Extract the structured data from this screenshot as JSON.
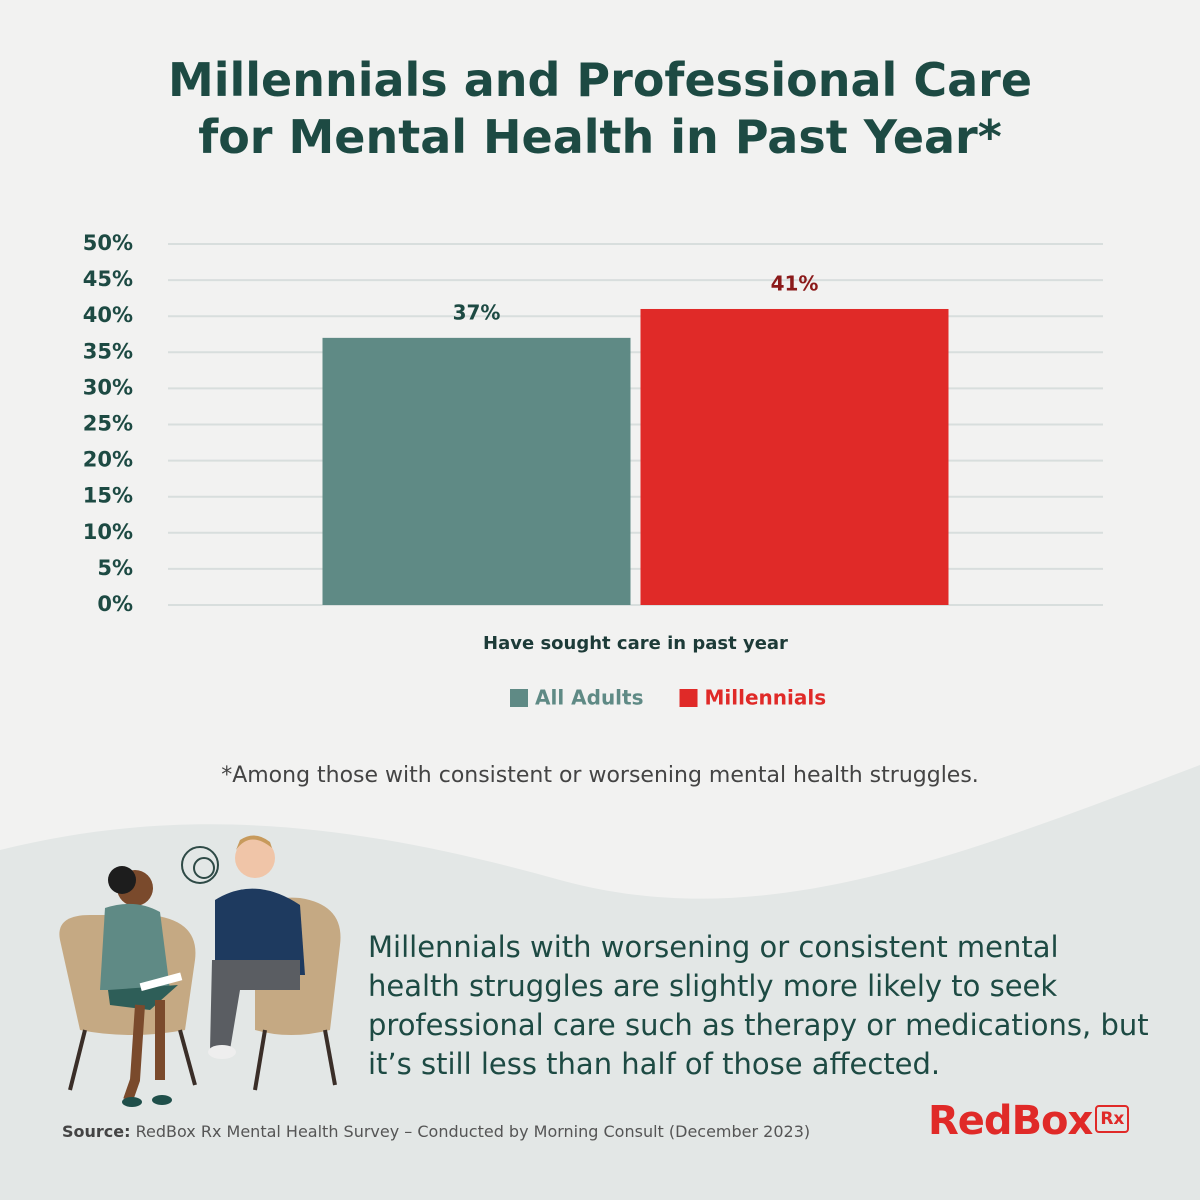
{
  "chart_data": {
    "type": "bar",
    "title": "Millennials and Professional Care for Mental Health in Past Year*",
    "categories": [
      "Have sought care in past year"
    ],
    "series": [
      {
        "name": "All Adults",
        "color": "#5f8a85",
        "values": [
          37
        ],
        "value_labels": [
          "37%"
        ]
      },
      {
        "name": "Millennials",
        "color": "#e02a28",
        "values": [
          41
        ],
        "value_labels": [
          "41%"
        ]
      }
    ],
    "ylim": [
      0,
      50
    ],
    "yticks": [
      {
        "value": 0,
        "label": "0%"
      },
      {
        "value": 5,
        "label": "5%"
      },
      {
        "value": 10,
        "label": "10%"
      },
      {
        "value": 15,
        "label": "15%"
      },
      {
        "value": 20,
        "label": "20%"
      },
      {
        "value": 25,
        "label": "25%"
      },
      {
        "value": 30,
        "label": "30%"
      },
      {
        "value": 35,
        "label": "35%"
      },
      {
        "value": 40,
        "label": "40%"
      },
      {
        "value": 45,
        "label": "45%"
      },
      {
        "value": 50,
        "label": "50%"
      }
    ],
    "grid": true,
    "legend": "bottom"
  },
  "footnote": "*Among those with consistent or worsening mental health struggles.",
  "description": "Millennials with worsening or consistent mental health struggles are slightly more likely to seek professional care such as therapy or medications, but it’s still less than half of those affected.",
  "source": {
    "label": "Source:",
    "text": "RedBox Rx Mental Health Survey – Conducted by Morning Consult (December 2023)"
  },
  "logo": {
    "name": "RedBox",
    "badge": "Rx"
  }
}
